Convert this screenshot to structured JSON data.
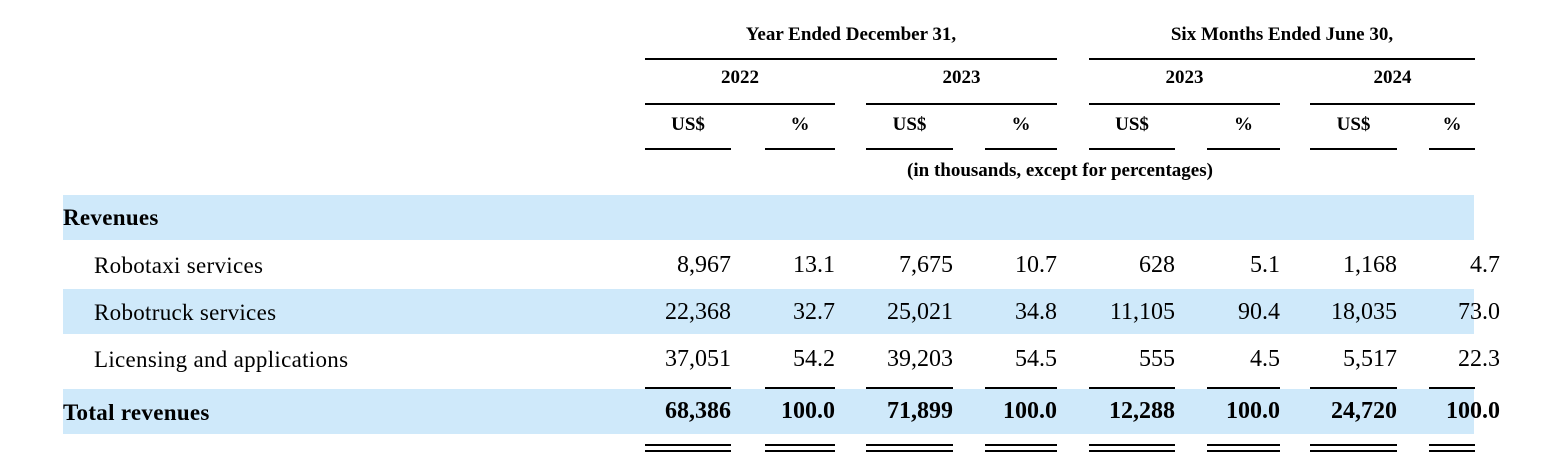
{
  "header": {
    "groups": [
      "Year Ended December 31,",
      "Six Months Ended June 30,"
    ],
    "years": [
      "2022",
      "2023",
      "2023",
      "2024"
    ],
    "units": [
      "US$",
      "%",
      "US$",
      "%",
      "US$",
      "%",
      "US$",
      "%"
    ],
    "note": "(in thousands, except for percentages)"
  },
  "rows": [
    {
      "label": "Revenues",
      "values": []
    },
    {
      "label": "Robotaxi services",
      "values": [
        "8,967",
        "13.1",
        "7,675",
        "10.7",
        "628",
        "5.1",
        "1,168",
        "4.7"
      ]
    },
    {
      "label": "Robotruck services",
      "values": [
        "22,368",
        "32.7",
        "25,021",
        "34.8",
        "11,105",
        "90.4",
        "18,035",
        "73.0"
      ]
    },
    {
      "label": "Licensing and applications",
      "values": [
        "37,051",
        "54.2",
        "39,203",
        "54.5",
        "555",
        "4.5",
        "5,517",
        "22.3"
      ]
    },
    {
      "label": "Total revenues",
      "values": [
        "68,386",
        "100.0",
        "71,899",
        "100.0",
        "12,288",
        "100.0",
        "24,720",
        "100.0"
      ]
    }
  ],
  "colors": {
    "band": "#cfe9fa",
    "text": "#000000"
  }
}
